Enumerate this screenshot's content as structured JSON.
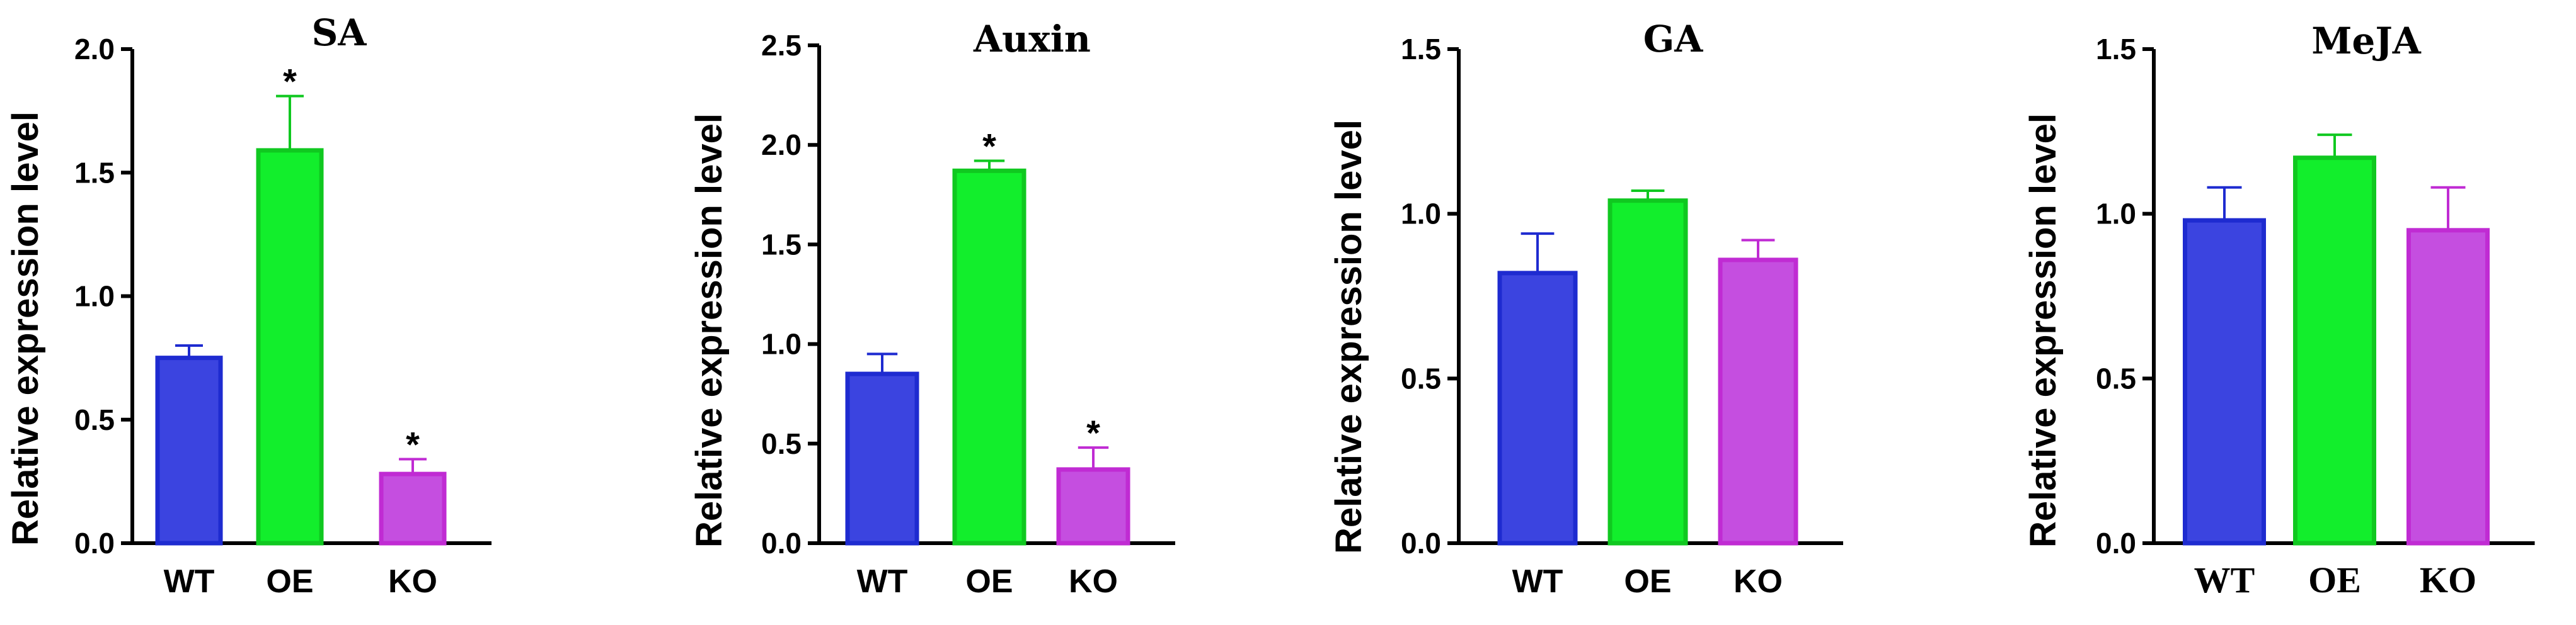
{
  "chart_data": [
    {
      "type": "bar",
      "title": "SA",
      "ylabel": "Relative expression level",
      "xlabel": "",
      "categories": [
        "WT",
        "OE",
        "KO"
      ],
      "values": [
        0.75,
        1.59,
        0.28
      ],
      "errors": [
        0.05,
        0.22,
        0.06
      ],
      "significance": [
        "",
        "*",
        "*"
      ],
      "ylim": [
        0,
        2.0
      ],
      "yticks": [
        "0.0",
        "0.5",
        "1.0",
        "1.5",
        "2.0"
      ],
      "fill_colors": [
        "#3b44e0",
        "#12ee2c",
        "#c54ee0"
      ],
      "edge_colors": [
        "#1e2bd0",
        "#10c820",
        "#c02bd3"
      ]
    },
    {
      "type": "bar",
      "title": "Auxin",
      "ylabel": "Relative expression level",
      "xlabel": "",
      "categories": [
        "WT",
        "OE",
        "KO"
      ],
      "values": [
        0.85,
        1.87,
        0.37
      ],
      "errors": [
        0.1,
        0.05,
        0.11
      ],
      "significance": [
        "",
        "*",
        "*"
      ],
      "ylim": [
        0,
        2.5
      ],
      "yticks": [
        "0.0",
        "0.5",
        "1.0",
        "1.5",
        "2.0",
        "2.5"
      ],
      "fill_colors": [
        "#3b44e0",
        "#12ee2c",
        "#c54ee0"
      ],
      "edge_colors": [
        "#1e2bd0",
        "#10c820",
        "#c02bd3"
      ]
    },
    {
      "type": "bar",
      "title": "GA",
      "ylabel": "Relative expression level",
      "xlabel": "",
      "categories": [
        "WT",
        "OE",
        "KO"
      ],
      "values": [
        0.82,
        1.04,
        0.86
      ],
      "errors": [
        0.12,
        0.03,
        0.06
      ],
      "significance": [
        "",
        "",
        ""
      ],
      "ylim": [
        0,
        1.5
      ],
      "yticks": [
        "0.0",
        "0.5",
        "1.0",
        "1.5"
      ],
      "fill_colors": [
        "#3b44e0",
        "#12ee2c",
        "#c54ee0"
      ],
      "edge_colors": [
        "#1e2bd0",
        "#10c820",
        "#c02bd3"
      ]
    },
    {
      "type": "bar",
      "title": "MeJA",
      "ylabel": "Relative expression level",
      "xlabel": "",
      "categories": [
        "WT",
        "OE",
        "KO"
      ],
      "values": [
        0.98,
        1.17,
        0.95
      ],
      "errors": [
        0.1,
        0.07,
        0.13
      ],
      "significance": [
        "",
        "",
        ""
      ],
      "ylim": [
        0,
        1.5
      ],
      "yticks": [
        "0.0",
        "0.5",
        "1.0",
        "1.5"
      ],
      "fill_colors": [
        "#3b44e0",
        "#12ee2c",
        "#c54ee0"
      ],
      "edge_colors": [
        "#1e2bd0",
        "#10c820",
        "#c02bd3"
      ]
    }
  ]
}
